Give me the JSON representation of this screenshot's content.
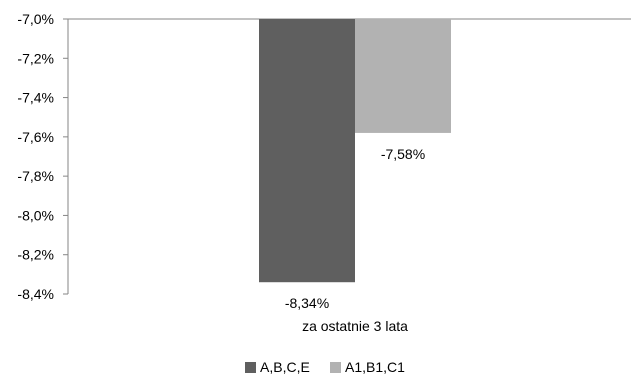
{
  "chart_data": {
    "type": "bar",
    "categories": [
      "za ostatnie  3 lata"
    ],
    "series": [
      {
        "name": "A,B,C,E",
        "values": [
          -8.34
        ],
        "label": "-8,34%",
        "color": "#5f5f5f"
      },
      {
        "name": "A1,B1,C1",
        "values": [
          -7.58
        ],
        "label": "-7,58%",
        "color": "#b2b2b2"
      }
    ],
    "ylim": [
      -8.4,
      -7.0
    ],
    "yticks": [
      -7.0,
      -7.2,
      -7.4,
      -7.6,
      -7.8,
      -8.0,
      -8.2,
      -8.4
    ],
    "ytick_labels": [
      "-7,0%",
      "-7,2%",
      "-7,4%",
      "-7,6%",
      "-7,8%",
      "-8,0%",
      "-8,2%",
      "-8,4%"
    ],
    "title": "",
    "xlabel": "",
    "ylabel": "",
    "grid": false,
    "legend_position": "bottom",
    "axis_color": "#868686"
  }
}
